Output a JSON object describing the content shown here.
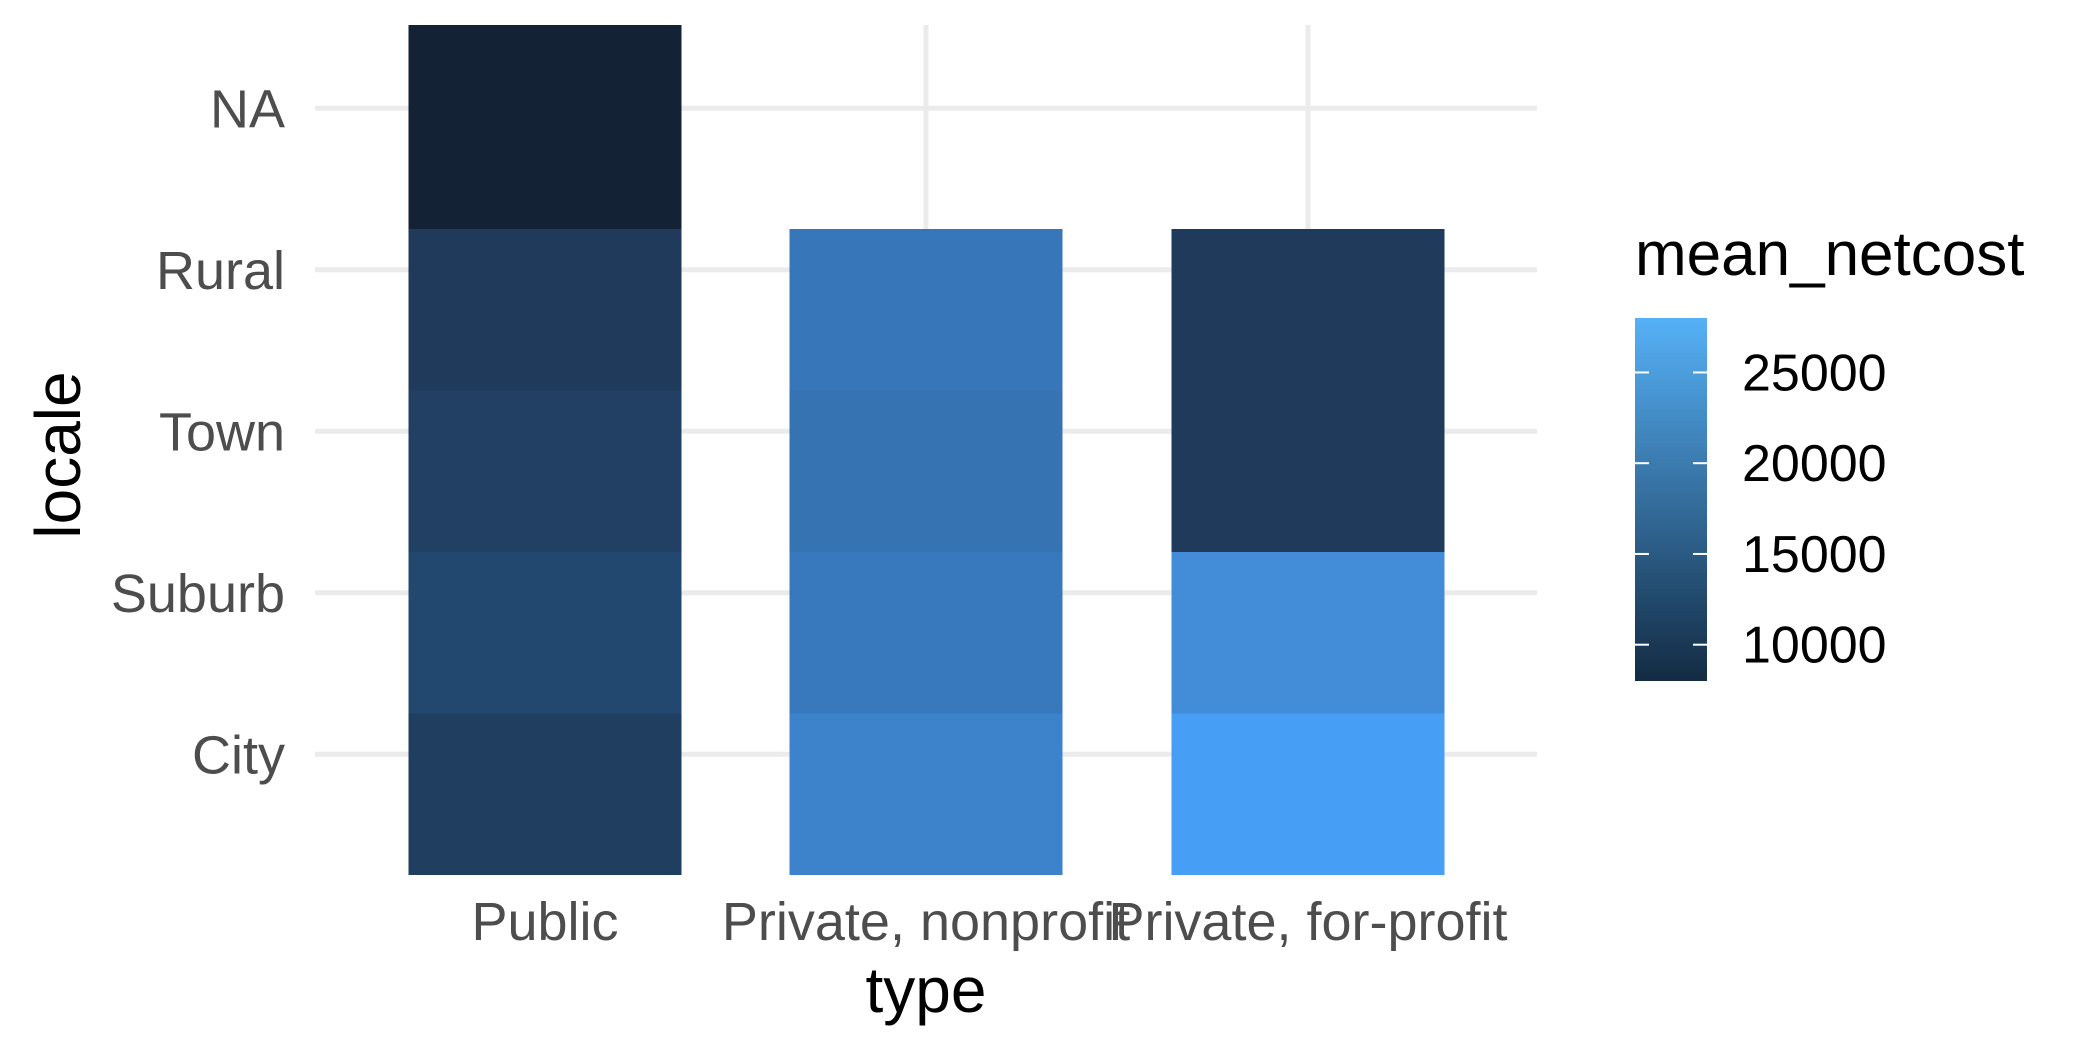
{
  "chart_data": {
    "type": "bar",
    "stacked": true,
    "xlabel": "type",
    "ylabel": "locale",
    "categories": [
      "Public",
      "Private, nonprofit",
      "Private, for-profit"
    ],
    "locales": [
      "City",
      "Suburb",
      "Town",
      "Rural",
      "NA"
    ],
    "series": [
      {
        "category": "Public",
        "segments": [
          {
            "locale": "City",
            "mean_netcost": 13000,
            "color": "#203e5f"
          },
          {
            "locale": "Suburb",
            "mean_netcost": 14600,
            "color": "#234870"
          },
          {
            "locale": "Town",
            "mean_netcost": 13400,
            "color": "#214063"
          },
          {
            "locale": "Rural",
            "mean_netcost": 12700,
            "color": "#1f3a5b"
          },
          {
            "locale": "NA",
            "mean_netcost": 8500,
            "color": "#132234"
          }
        ]
      },
      {
        "category": "Private, nonprofit",
        "segments": [
          {
            "locale": "City",
            "mean_netcost": 23500,
            "color": "#3d83cb"
          },
          {
            "locale": "Suburb",
            "mean_netcost": 22000,
            "color": "#3879bd"
          },
          {
            "locale": "Town",
            "mean_netcost": 21300,
            "color": "#3673b3"
          },
          {
            "locale": "Rural",
            "mean_netcost": 22000,
            "color": "#3776b8"
          }
        ]
      },
      {
        "category": "Private, for-profit",
        "segments": [
          {
            "locale": "City",
            "mean_netcost": 27800,
            "color": "#479ef5"
          },
          {
            "locale": "Suburb",
            "mean_netcost": 24800,
            "color": "#428cd8"
          },
          {
            "locale": "Town",
            "mean_netcost": 12700,
            "color": "#1f3a5b"
          },
          {
            "locale": "Rural",
            "mean_netcost": 12700,
            "color": "#1f3a5b"
          }
        ]
      }
    ],
    "legend": {
      "title": "mean_netcost",
      "position": "right",
      "ticks": [
        {
          "label": "25000",
          "value": 25000
        },
        {
          "label": "20000",
          "value": 20000
        },
        {
          "label": "15000",
          "value": 15000
        },
        {
          "label": "10000",
          "value": 10000
        }
      ],
      "range": [
        8000,
        28000
      ],
      "color_low": "#132b43",
      "color_high": "#56b1f7"
    },
    "grid": true,
    "background": "#ffffff",
    "grid_color": "#ebebeb"
  }
}
